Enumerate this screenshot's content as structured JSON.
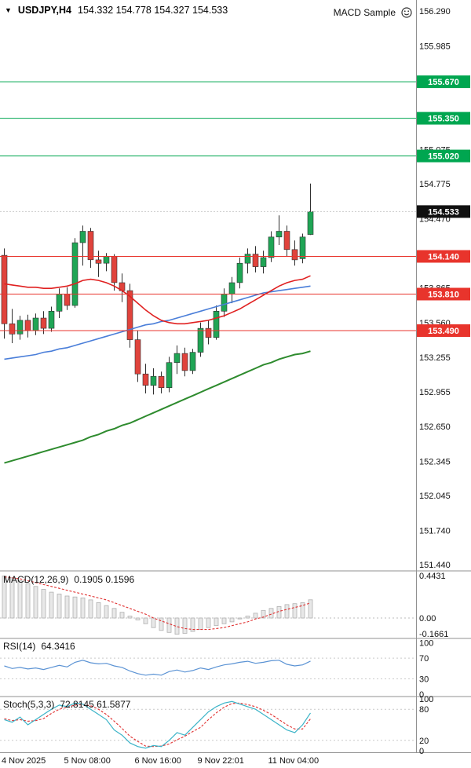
{
  "titlebar": {
    "symbol_period": "USDJPY,H4",
    "ohlc": "154.332 154.778 154.327 154.533",
    "expert_name": "MACD Sample"
  },
  "colors": {
    "up": "#1fa555",
    "down": "#e0433c",
    "wick": "#303030",
    "ma_fast": "#e02020",
    "ma_mid": "#4a7ed9",
    "ma_slow": "#2e8b2e",
    "res_line": "#00a650",
    "sup_line": "#e8342c",
    "macd_hist_fill": "#e8e8e8",
    "macd_hist_stroke": "#b0b0b0",
    "signal": "#e03030",
    "rsi": "#5b93d4",
    "stoch_k": "#3cb4c8",
    "stoch_d": "#e03030",
    "axis_line": "#909090",
    "panel_sep": "#c8c8c8",
    "current_badge": "#101010"
  },
  "chart_data": [
    {
      "type": "candlestick",
      "title": "USDJPY,H4",
      "ylim": [
        151.39,
        156.39
      ],
      "yticks": [
        "156.290",
        "155.985",
        "155.680",
        "155.380",
        "155.075",
        "154.775",
        "154.470",
        "154.165",
        "153.865",
        "153.560",
        "153.255",
        "152.955",
        "152.650",
        "152.345",
        "152.045",
        "151.740",
        "151.440"
      ],
      "levels": [
        {
          "label": "155.670",
          "kind": "res"
        },
        {
          "label": "155.350",
          "kind": "res"
        },
        {
          "label": "155.020",
          "kind": "res"
        },
        {
          "label": "154.533",
          "kind": "current"
        },
        {
          "label": "154.140",
          "kind": "sup"
        },
        {
          "label": "153.810",
          "kind": "sup"
        },
        {
          "label": "153.490",
          "kind": "sup"
        }
      ],
      "x_labels": [
        {
          "text": "4 Nov 2025",
          "i": 0
        },
        {
          "text": "5 Nov 08:00",
          "i": 8
        },
        {
          "text": "6 Nov 16:00",
          "i": 17
        },
        {
          "text": "9 Nov 22:01",
          "i": 25
        },
        {
          "text": "11 Nov 04:00",
          "i": 34
        }
      ],
      "candles": [
        [
          154.15,
          154.21,
          153.42,
          153.55
        ],
        [
          153.55,
          153.68,
          153.38,
          153.46
        ],
        [
          153.46,
          153.62,
          153.41,
          153.58
        ],
        [
          153.58,
          153.63,
          153.43,
          153.49
        ],
        [
          153.49,
          153.64,
          153.45,
          153.6
        ],
        [
          153.6,
          153.66,
          153.46,
          153.51
        ],
        [
          153.51,
          153.7,
          153.48,
          153.66
        ],
        [
          153.66,
          153.86,
          153.6,
          153.81
        ],
        [
          153.81,
          153.87,
          153.67,
          153.71
        ],
        [
          153.71,
          154.3,
          153.69,
          154.26
        ],
        [
          154.26,
          154.41,
          154.06,
          154.36
        ],
        [
          154.36,
          154.39,
          154.04,
          154.11
        ],
        [
          154.11,
          154.19,
          153.96,
          154.08
        ],
        [
          154.08,
          154.17,
          154.01,
          154.14
        ],
        [
          154.14,
          154.16,
          153.84,
          153.91
        ],
        [
          153.91,
          153.99,
          153.74,
          153.84
        ],
        [
          153.84,
          153.9,
          153.34,
          153.41
        ],
        [
          153.41,
          153.49,
          153.04,
          153.11
        ],
        [
          153.11,
          153.2,
          152.94,
          153.01
        ],
        [
          153.01,
          153.16,
          152.93,
          153.09
        ],
        [
          153.09,
          153.13,
          152.94,
          152.99
        ],
        [
          152.99,
          153.26,
          152.95,
          153.21
        ],
        [
          153.21,
          153.36,
          153.11,
          153.29
        ],
        [
          153.29,
          153.34,
          153.09,
          153.14
        ],
        [
          153.14,
          153.33,
          153.11,
          153.3
        ],
        [
          153.3,
          153.56,
          153.26,
          153.51
        ],
        [
          153.51,
          153.58,
          153.37,
          153.43
        ],
        [
          153.43,
          153.71,
          153.41,
          153.66
        ],
        [
          153.66,
          153.86,
          153.61,
          153.81
        ],
        [
          153.81,
          153.96,
          153.73,
          153.91
        ],
        [
          153.91,
          154.13,
          153.86,
          154.08
        ],
        [
          154.08,
          154.21,
          153.99,
          154.16
        ],
        [
          154.16,
          154.23,
          154.0,
          154.05
        ],
        [
          154.05,
          154.19,
          153.99,
          154.13
        ],
        [
          154.13,
          154.36,
          154.09,
          154.31
        ],
        [
          154.31,
          154.5,
          154.24,
          154.36
        ],
        [
          154.36,
          154.41,
          154.14,
          154.2
        ],
        [
          154.2,
          154.28,
          154.06,
          154.11
        ],
        [
          154.12,
          154.34,
          154.08,
          154.31
        ],
        [
          154.332,
          154.778,
          154.327,
          154.533
        ]
      ],
      "ma_fast": [
        153.9,
        153.89,
        153.88,
        153.87,
        153.87,
        153.86,
        153.86,
        153.87,
        153.88,
        153.9,
        153.93,
        153.94,
        153.93,
        153.91,
        153.88,
        153.84,
        153.79,
        153.73,
        153.67,
        153.62,
        153.58,
        153.56,
        153.55,
        153.55,
        153.56,
        153.57,
        153.58,
        153.6,
        153.62,
        153.65,
        153.68,
        153.72,
        153.76,
        153.8,
        153.84,
        153.88,
        153.91,
        153.93,
        153.94,
        153.97
      ],
      "ma_mid": [
        153.24,
        153.25,
        153.26,
        153.27,
        153.28,
        153.3,
        153.31,
        153.33,
        153.34,
        153.36,
        153.38,
        153.4,
        153.42,
        153.44,
        153.46,
        153.48,
        153.5,
        153.52,
        153.54,
        153.55,
        153.57,
        153.58,
        153.6,
        153.62,
        153.64,
        153.66,
        153.68,
        153.7,
        153.72,
        153.74,
        153.76,
        153.78,
        153.8,
        153.82,
        153.83,
        153.84,
        153.85,
        153.86,
        153.87,
        153.88
      ],
      "ma_slow": [
        152.33,
        152.35,
        152.37,
        152.39,
        152.41,
        152.43,
        152.45,
        152.47,
        152.49,
        152.51,
        152.53,
        152.56,
        152.58,
        152.61,
        152.63,
        152.66,
        152.68,
        152.71,
        152.74,
        152.77,
        152.8,
        152.83,
        152.86,
        152.89,
        152.92,
        152.95,
        152.98,
        153.01,
        153.04,
        153.07,
        153.1,
        153.13,
        153.16,
        153.19,
        153.21,
        153.24,
        153.26,
        153.28,
        153.29,
        153.31
      ]
    },
    {
      "type": "bar",
      "name": "MACD(12,26,9)",
      "values_display": "0.1905 0.1596",
      "ylim": [
        -0.21,
        0.4431
      ],
      "yticks": [
        "0.4431",
        "0.00",
        "-0.1661"
      ],
      "histogram": [
        0.44,
        0.42,
        0.39,
        0.36,
        0.33,
        0.3,
        0.27,
        0.25,
        0.23,
        0.22,
        0.21,
        0.19,
        0.16,
        0.13,
        0.1,
        0.06,
        0.02,
        -0.02,
        -0.06,
        -0.1,
        -0.13,
        -0.15,
        -0.17,
        -0.16,
        -0.14,
        -0.12,
        -0.1,
        -0.08,
        -0.06,
        -0.04,
        -0.01,
        0.02,
        0.05,
        0.08,
        0.1,
        0.12,
        0.14,
        0.15,
        0.16,
        0.1905
      ],
      "signal": [
        0.43,
        0.42,
        0.41,
        0.39,
        0.37,
        0.35,
        0.33,
        0.31,
        0.29,
        0.27,
        0.25,
        0.23,
        0.21,
        0.19,
        0.16,
        0.13,
        0.1,
        0.07,
        0.04,
        0.0,
        -0.03,
        -0.06,
        -0.09,
        -0.11,
        -0.12,
        -0.12,
        -0.12,
        -0.11,
        -0.1,
        -0.08,
        -0.06,
        -0.04,
        -0.01,
        0.01,
        0.04,
        0.07,
        0.09,
        0.11,
        0.13,
        0.1596
      ]
    },
    {
      "type": "line",
      "name": "RSI(14)",
      "values_display": "64.3416",
      "ylim": [
        0,
        100
      ],
      "yticks": [
        "100",
        "70",
        "30",
        "0"
      ],
      "levels": [
        70,
        30
      ],
      "values": [
        55,
        50,
        52,
        49,
        51,
        48,
        52,
        56,
        53,
        62,
        66,
        61,
        59,
        60,
        55,
        52,
        45,
        40,
        37,
        39,
        37,
        44,
        47,
        43,
        46,
        51,
        48,
        53,
        57,
        59,
        62,
        64,
        60,
        62,
        65,
        66,
        58,
        55,
        57,
        64.34
      ]
    },
    {
      "type": "line",
      "name": "Stoch(5,3,3)",
      "values_display": "72.8145 61.5877",
      "ylim": [
        0,
        100
      ],
      "yticks": [
        "100",
        "80",
        "20",
        "0"
      ],
      "levels": [
        80,
        20
      ],
      "k": [
        60,
        55,
        65,
        50,
        60,
        70,
        80,
        88,
        85,
        92,
        90,
        80,
        70,
        60,
        40,
        30,
        15,
        8,
        5,
        10,
        8,
        20,
        35,
        30,
        45,
        60,
        75,
        85,
        92,
        95,
        90,
        85,
        80,
        70,
        60,
        50,
        40,
        35,
        50,
        72.81
      ],
      "d": [
        62,
        58,
        60,
        57,
        58,
        62,
        72,
        80,
        84,
        88,
        89,
        87,
        80,
        70,
        57,
        43,
        28,
        18,
        9,
        8,
        9,
        13,
        21,
        28,
        37,
        45,
        60,
        73,
        84,
        91,
        92,
        89,
        85,
        78,
        70,
        60,
        50,
        42,
        42,
        61.59
      ]
    }
  ]
}
